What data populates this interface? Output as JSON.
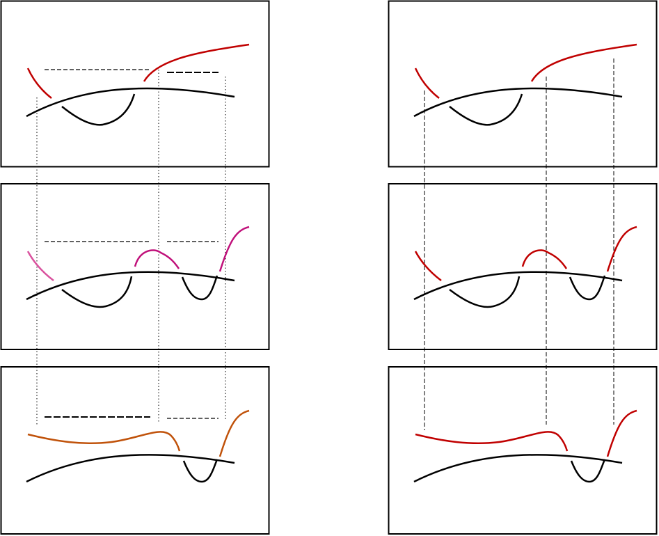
{
  "colors": {
    "frame": "#000000",
    "base_curve": "#000000",
    "red": "#c00000",
    "magenta": "#c0107a",
    "pink": "#d9529e",
    "orange": "#c0520a",
    "guide": "#000000"
  },
  "layout_panels": {
    "left_column": [
      "panel-left-top",
      "panel-left-middle",
      "panel-left-bottom"
    ],
    "right_column": [
      "panel-right-top",
      "panel-right-middle",
      "panel-right-bottom"
    ]
  },
  "guides": {
    "left_style": "dotted",
    "right_style": "dashed"
  }
}
